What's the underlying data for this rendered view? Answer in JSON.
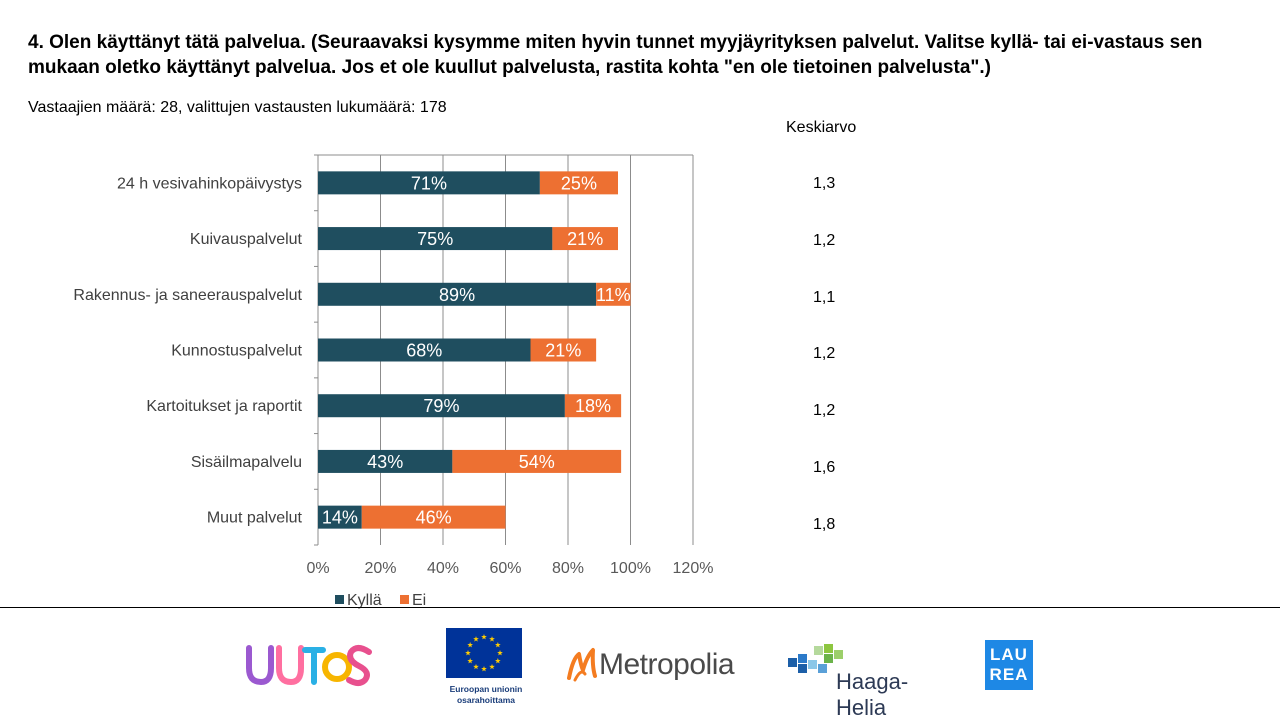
{
  "header": {
    "title": "4. Olen käyttänyt tätä palvelua. (Seuraavaksi kysymme miten hyvin tunnet myyjäyrityksen  palvelut. Valitse kyllä- tai ei-vastaus sen mukaan oletko käyttänyt palvelua. Jos et ole kuullut palvelusta, rastita kohta \"en ole tietoinen palvelusta\".)",
    "subtitle": "Vastaajien määrä: 28, valittujen vastausten lukumäärä: 178"
  },
  "averages": {
    "header": "Keskiarvo",
    "values": [
      "1,3",
      "1,2",
      "1,1",
      "1,2",
      "1,2",
      "1,6",
      "1,8"
    ]
  },
  "chart_data": {
    "type": "bar",
    "orientation": "horizontal",
    "stacked": true,
    "categories": [
      "24 h vesivahinkopäivystys",
      "Kuivauspalvelut",
      "Rakennus- ja saneerauspalvelut",
      "Kunnostuspalvelut",
      "Kartoitukset ja raportit",
      "Sisäilmapalvelu",
      "Muut palvelut"
    ],
    "series": [
      {
        "name": "Kyllä",
        "color": "#1f4e5f",
        "values": [
          71,
          75,
          89,
          68,
          79,
          43,
          14
        ],
        "labels": [
          "71%",
          "75%",
          "89%",
          "68%",
          "79%",
          "43%",
          "14%"
        ]
      },
      {
        "name": "Ei",
        "color": "#ed7032",
        "values": [
          25,
          21,
          11,
          21,
          18,
          54,
          46
        ],
        "labels": [
          "25%",
          "21%",
          "11%",
          "21%",
          "18%",
          "54%",
          "46%"
        ]
      }
    ],
    "xlim": [
      0,
      120
    ],
    "xticks": [
      "0%",
      "20%",
      "40%",
      "60%",
      "80%",
      "100%",
      "120%"
    ],
    "grid": true,
    "legend_position": "bottom"
  },
  "footer": {
    "logos": {
      "uutos": "UUTOS",
      "eu_caption_1": "Euroopan unionin",
      "eu_caption_2": "osarahoittama",
      "metropolia": "Metropolia",
      "haaga_helia": "Haaga-Helia",
      "laurea_1": "LAU",
      "laurea_2": "REA"
    }
  }
}
